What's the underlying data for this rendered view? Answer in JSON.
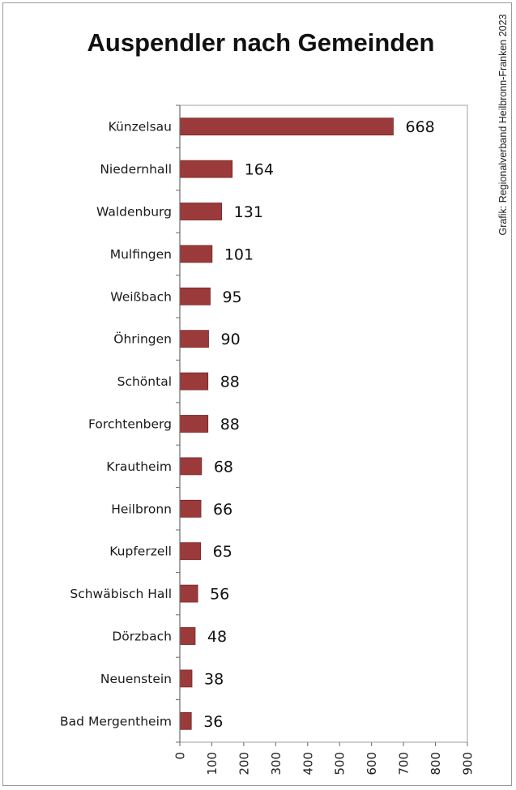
{
  "chart_data": {
    "type": "bar",
    "orientation": "horizontal",
    "title": "Auspendler nach Gemeinden",
    "categories": [
      "Künzelsau",
      "Niedernhall",
      "Waldenburg",
      "Mulfingen",
      "Weißbach",
      "Öhringen",
      "Schöntal",
      "Forchtenberg",
      "Krautheim",
      "Heilbronn",
      "Kupferzell",
      "Schwäbisch Hall",
      "Dörzbach",
      "Neuenstein",
      "Bad Mergentheim"
    ],
    "values": [
      668,
      164,
      131,
      101,
      95,
      90,
      88,
      88,
      68,
      66,
      65,
      56,
      48,
      38,
      36
    ],
    "xlim": [
      0,
      900
    ],
    "xticks": [
      "0",
      "100",
      "200",
      "300",
      "400",
      "500",
      "600",
      "700",
      "800",
      "900"
    ],
    "xlabel": "",
    "ylabel": "",
    "grid": false,
    "legend": "none",
    "bar_color": "#9b3a3a",
    "bar_edge_color": "#7a2424"
  },
  "credit": "Grafik: Regionalverband Heilbronn-Franken 2023"
}
